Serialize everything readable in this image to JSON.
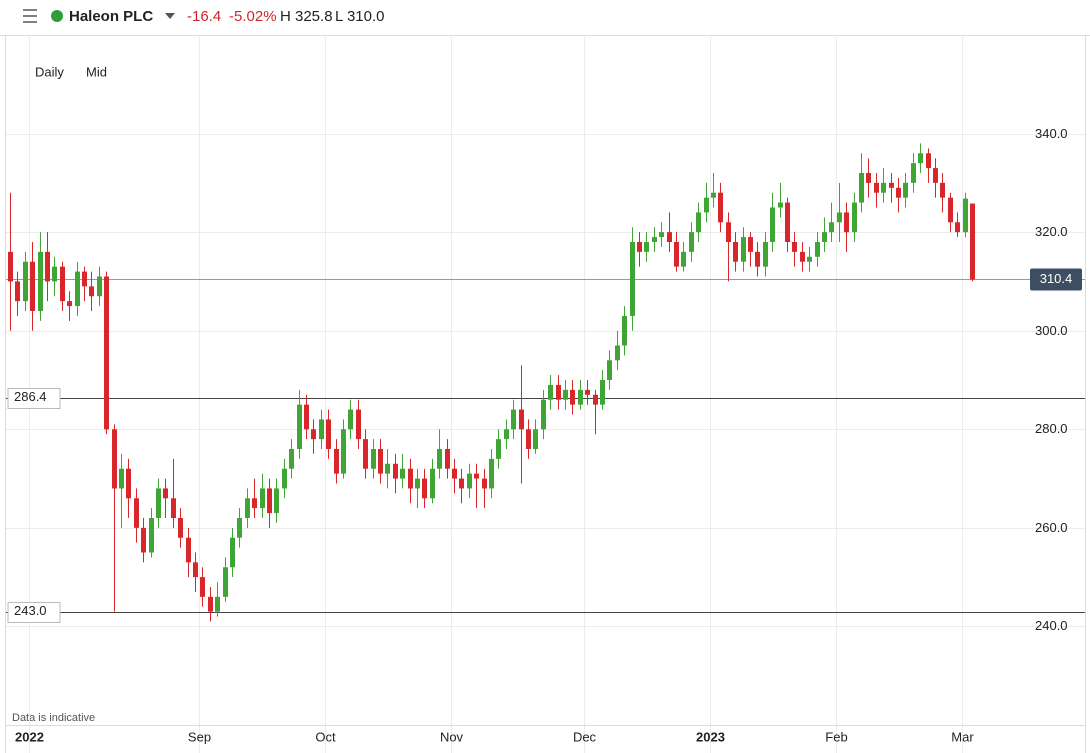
{
  "header": {
    "symbol": "Haleon PLC",
    "change": "-16.4",
    "change_pct": "-5.02%",
    "high": "H 325.8",
    "low": "L 310.0"
  },
  "controls": {
    "interval": "Daily",
    "price_type": "Mid"
  },
  "chart_data": {
    "type": "candlestick",
    "note": "Data is indicative",
    "categories": [
      null,
      null,
      null,
      "2022",
      null,
      null,
      null,
      null,
      null,
      null,
      null,
      null,
      null,
      null,
      null,
      null,
      null,
      null,
      null,
      null,
      null,
      null,
      null,
      null,
      null,
      null,
      "Sep",
      null,
      null,
      null,
      null,
      null,
      null,
      null,
      null,
      null,
      null,
      null,
      null,
      null,
      null,
      null,
      null,
      "Oct",
      null,
      null,
      null,
      null,
      null,
      null,
      null,
      null,
      null,
      null,
      null,
      null,
      null,
      null,
      null,
      null,
      "Nov",
      null,
      null,
      null,
      null,
      null,
      null,
      null,
      null,
      null,
      null,
      null,
      null,
      null,
      null,
      null,
      null,
      null,
      "Dec",
      null,
      null,
      null,
      null,
      null,
      null,
      null,
      null,
      null,
      null,
      null,
      null,
      null,
      null,
      null,
      null,
      "2023",
      null,
      null,
      null,
      null,
      null,
      null,
      null,
      null,
      null,
      null,
      null,
      null,
      null,
      null,
      null,
      null,
      "Feb",
      null,
      null,
      null,
      null,
      null,
      null,
      null,
      null,
      null,
      null,
      null,
      null,
      null,
      null,
      null,
      null,
      "Mar",
      null
    ],
    "open": [
      316,
      310,
      306,
      314,
      304,
      316,
      310,
      313,
      306,
      305,
      312,
      309,
      307,
      311,
      280,
      268,
      272,
      266,
      260,
      255,
      262,
      268,
      266,
      262,
      258,
      253,
      250,
      246,
      243,
      246,
      252,
      258,
      262,
      266,
      264,
      268,
      263,
      268,
      272,
      276,
      285,
      280,
      278,
      282,
      276,
      271,
      280,
      284,
      278,
      272,
      276,
      271,
      273,
      270,
      272,
      268,
      270,
      266,
      272,
      276,
      272,
      270,
      268,
      271,
      270,
      268,
      274,
      278,
      280,
      284,
      280,
      276,
      280,
      286,
      289,
      286,
      288,
      285,
      288,
      287,
      285,
      290,
      294,
      297,
      303,
      318,
      316,
      318,
      319,
      320,
      318,
      313,
      316,
      320,
      324,
      327,
      328,
      322,
      318,
      314,
      319,
      316,
      313,
      318,
      325,
      326,
      318,
      316,
      314,
      315,
      318,
      320,
      322,
      324,
      320,
      326,
      332,
      330,
      328,
      330,
      329,
      327,
      330,
      334,
      336,
      333,
      330,
      327,
      322,
      320,
      325.8
    ],
    "high": [
      328,
      312,
      316,
      318,
      320,
      320,
      315,
      314,
      308,
      314,
      313,
      312,
      313,
      312,
      281,
      275,
      274,
      268,
      262,
      264,
      270,
      270,
      274,
      264,
      260,
      255,
      252,
      248,
      249,
      254,
      260,
      264,
      268,
      270,
      271,
      270,
      270,
      274,
      278,
      288,
      287,
      282,
      284,
      284,
      278,
      282,
      286,
      286,
      280,
      278,
      278,
      276,
      275,
      275,
      274,
      272,
      272,
      274,
      280,
      278,
      274,
      272,
      273,
      273,
      272,
      276,
      280,
      282,
      286,
      293,
      282,
      282,
      288,
      291,
      291,
      290,
      290,
      290,
      290,
      288,
      292,
      296,
      300,
      305,
      321,
      320,
      320,
      321,
      322,
      324,
      320,
      318,
      322,
      326,
      330,
      332,
      330,
      324,
      320,
      321,
      320,
      318,
      320,
      328,
      330,
      327,
      320,
      318,
      317,
      320,
      323,
      326,
      330,
      326,
      328,
      336,
      335,
      332,
      333,
      332,
      331,
      332,
      336,
      338,
      337,
      335,
      332,
      328,
      324,
      328,
      325.8
    ],
    "low": [
      300,
      303,
      304,
      300,
      302,
      306,
      307,
      304,
      302,
      303,
      306,
      304,
      305,
      279,
      243,
      260,
      262,
      257,
      253,
      254,
      260,
      262,
      260,
      256,
      250,
      247,
      244,
      241,
      242,
      245,
      250,
      256,
      260,
      262,
      262,
      260,
      261,
      266,
      270,
      274,
      278,
      275,
      276,
      274,
      269,
      270,
      278,
      276,
      270,
      270,
      269,
      268,
      267,
      268,
      265,
      264,
      264,
      265,
      270,
      270,
      267,
      265,
      266,
      264,
      264,
      266,
      272,
      276,
      278,
      269,
      274,
      275,
      278,
      284,
      284,
      284,
      283,
      284,
      285,
      279,
      284,
      288,
      292,
      295,
      300,
      313,
      314,
      316,
      317,
      316,
      312,
      312,
      314,
      318,
      322,
      325,
      320,
      310,
      312,
      312,
      313,
      311,
      311,
      316,
      323,
      316,
      313,
      312,
      312,
      313,
      316,
      318,
      318,
      316,
      318,
      324,
      327,
      325,
      326,
      326,
      324,
      325,
      328,
      332,
      330,
      327,
      324,
      320,
      319,
      319,
      310.0
    ],
    "close": [
      310,
      306,
      314,
      304,
      316,
      310,
      313,
      306,
      305,
      312,
      309,
      307,
      311,
      280,
      268,
      272,
      266,
      260,
      255,
      262,
      268,
      266,
      262,
      258,
      253,
      250,
      246,
      243,
      246,
      252,
      258,
      262,
      266,
      264,
      268,
      263,
      268,
      272,
      276,
      285,
      280,
      278,
      282,
      276,
      271,
      280,
      284,
      278,
      272,
      276,
      271,
      273,
      270,
      272,
      268,
      270,
      266,
      272,
      276,
      272,
      270,
      268,
      271,
      270,
      268,
      274,
      278,
      280,
      284,
      280,
      276,
      280,
      286,
      289,
      286,
      288,
      285,
      288,
      287,
      285,
      290,
      294,
      297,
      303,
      318,
      316,
      318,
      319,
      320,
      318,
      313,
      316,
      320,
      324,
      327,
      328,
      322,
      318,
      314,
      319,
      316,
      313,
      318,
      325,
      326,
      318,
      316,
      314,
      315,
      318,
      320,
      322,
      324,
      320,
      326,
      332,
      330,
      328,
      330,
      329,
      327,
      330,
      334,
      336,
      333,
      330,
      327,
      322,
      320,
      326.8,
      310.4
    ],
    "up_color": "#3fa535",
    "down_color": "#d9262b",
    "ylim": [
      220,
      360
    ],
    "yticks": [
      {
        "value": 240,
        "label": "240.0"
      },
      {
        "value": 260,
        "label": "260.0"
      },
      {
        "value": 280,
        "label": "280.0"
      },
      {
        "value": 300,
        "label": "300.0"
      },
      {
        "value": 320,
        "label": "320.0"
      },
      {
        "value": 340,
        "label": "340.0"
      }
    ],
    "grid": true,
    "levels": [
      {
        "value": 286.4,
        "label": "286.4"
      },
      {
        "value": 243,
        "label": "243.0"
      }
    ],
    "current_price": {
      "value": 310.4,
      "label": "310.4"
    }
  }
}
